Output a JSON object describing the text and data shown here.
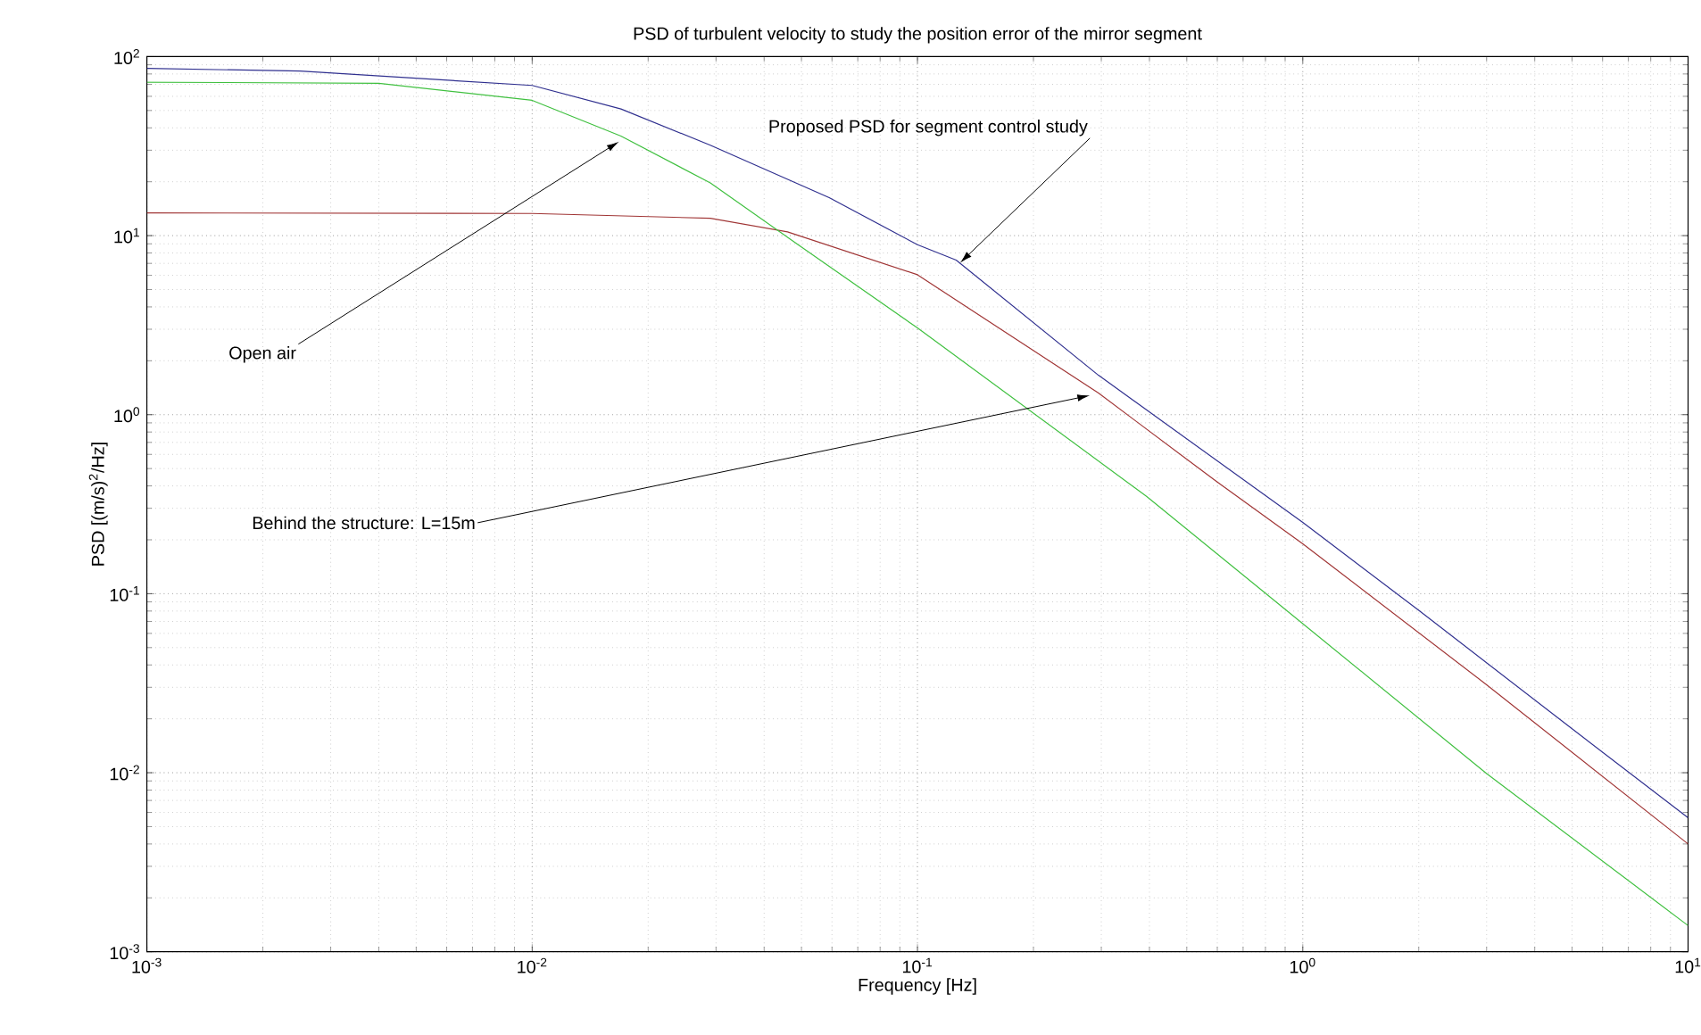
{
  "chart_data": {
    "type": "line",
    "title": "PSD of turbulent velocity to study the position error of the mirror segment",
    "xlabel": "Frequency [Hz]",
    "ylabel": "PSD [(m/s)$^{2}$/Hz]",
    "log": "xy",
    "grid": true,
    "xlim": [
      0.001,
      10
    ],
    "ylim": [
      0.001,
      100
    ],
    "xticks": [
      {
        "value": 0.001,
        "label": "10$^{-3}$"
      },
      {
        "value": 0.01,
        "label": "10$^{-2}$"
      },
      {
        "value": 0.1,
        "label": "10$^{-1}$"
      },
      {
        "value": 1,
        "label": "10$^{0}$"
      },
      {
        "value": 10,
        "label": "10$^{1}$"
      }
    ],
    "yticks": [
      {
        "value": 0.001,
        "label": "10$^{-3}$"
      },
      {
        "value": 0.01,
        "label": "10$^{-2}$"
      },
      {
        "value": 0.1,
        "label": "10$^{-1}$"
      },
      {
        "value": 1,
        "label": "10$^{0}$"
      },
      {
        "value": 10,
        "label": "10$^{1}$"
      },
      {
        "value": 100,
        "label": "10$^{2}$"
      }
    ],
    "series": [
      {
        "color": "#30308f",
        "x": [
          0.001,
          0.0025,
          0.01,
          0.017,
          0.029,
          0.059,
          0.1,
          0.126,
          0.295,
          1,
          2.01,
          4.93,
          10
        ],
        "values": [
          86,
          83,
          69,
          51,
          32,
          16.3,
          8.9,
          7.3,
          1.66,
          0.25,
          0.08,
          0.018,
          0.0056
        ]
      },
      {
        "color": "#a03535",
        "x": [
          0.001,
          0.01,
          0.029,
          0.046,
          0.1,
          0.295,
          0.6,
          1,
          3,
          10
        ],
        "values": [
          13.4,
          13.3,
          12.5,
          10.5,
          6.05,
          1.32,
          0.42,
          0.19,
          0.031,
          0.004
        ]
      },
      {
        "color": "#40c040",
        "x": [
          0.001,
          0.004,
          0.01,
          0.017,
          0.029,
          0.049,
          0.1,
          0.393,
          1,
          3,
          10
        ],
        "values": [
          72,
          71,
          57,
          36,
          19.7,
          8.9,
          3.05,
          0.35,
          0.068,
          0.0099,
          0.0014
        ]
      }
    ],
    "annotations": [
      {
        "text": "Proposed PSD for segment control study",
        "x": 0.129,
        "y": 7.05
      },
      {
        "text": "Open air",
        "x": 0.0168,
        "y": 33.5
      },
      {
        "text": "Behind the structure: L=15m",
        "x": 0.28,
        "y": 1.28
      }
    ]
  }
}
